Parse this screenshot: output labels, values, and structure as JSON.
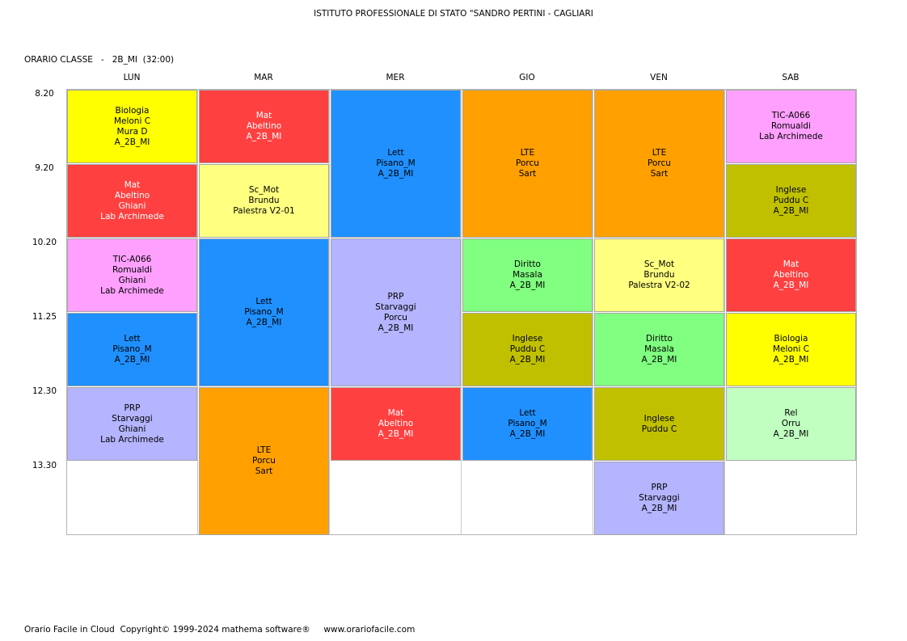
{
  "header": {
    "school": "ISTITUTO PROFESSIONALE DI STATO \"SANDRO PERTINI - CAGLIARI",
    "class_label": "ORARIO CLASSE   -   2B_MI  (32:00)"
  },
  "days": [
    "LUN",
    "MAR",
    "MER",
    "GIO",
    "VEN",
    "SAB"
  ],
  "times": [
    "8.20",
    "9.20",
    "10.20",
    "11.25",
    "12.30",
    "13.30"
  ],
  "colors": {
    "yellow": "#ffff00",
    "red": "#ff4040",
    "blue": "#2090ff",
    "orange": "#ffa000",
    "pink": "#ffa0ff",
    "light_yellow": "#ffff80",
    "lavender": "#b4b4ff",
    "green": "#80ff80",
    "olive": "#c0c000",
    "mint": "#c0ffc0"
  },
  "lessons": [
    {
      "day": 0,
      "start": 0,
      "span": 1,
      "color": "#ffff00",
      "lines": [
        "Biologia",
        "Meloni C",
        "Mura D",
        "A_2B_MI"
      ],
      "text_color": "#000000"
    },
    {
      "day": 0,
      "start": 1,
      "span": 1,
      "color": "#ff4040",
      "lines": [
        "Mat",
        "Abeltino",
        "Ghiani",
        "Lab Archimede"
      ],
      "text_color": "#ffffff"
    },
    {
      "day": 0,
      "start": 2,
      "span": 1,
      "color": "#ffa0ff",
      "lines": [
        "TIC-A066",
        "Romualdi",
        "Ghiani",
        "Lab Archimede"
      ],
      "text_color": "#000000"
    },
    {
      "day": 0,
      "start": 3,
      "span": 1,
      "color": "#2090ff",
      "lines": [
        "Lett",
        "Pisano_M",
        "A_2B_MI"
      ],
      "text_color": "#000000"
    },
    {
      "day": 0,
      "start": 4,
      "span": 1,
      "color": "#b4b4ff",
      "lines": [
        "PRP",
        "Starvaggi",
        "Ghiani",
        "Lab Archimede"
      ],
      "text_color": "#000000"
    },
    {
      "day": 1,
      "start": 0,
      "span": 1,
      "color": "#ff4040",
      "lines": [
        "Mat",
        "Abeltino",
        "A_2B_MI"
      ],
      "text_color": "#ffffff"
    },
    {
      "day": 1,
      "start": 1,
      "span": 1,
      "color": "#ffff80",
      "lines": [
        "Sc_Mot",
        "Brundu",
        "Palestra V2-01"
      ],
      "text_color": "#000000"
    },
    {
      "day": 1,
      "start": 2,
      "span": 2,
      "color": "#2090ff",
      "lines": [
        "Lett",
        "Pisano_M",
        "A_2B_MI"
      ],
      "text_color": "#000000"
    },
    {
      "day": 1,
      "start": 4,
      "span": 2,
      "color": "#ffa000",
      "lines": [
        "LTE",
        "Porcu",
        "Sart"
      ],
      "text_color": "#000000"
    },
    {
      "day": 2,
      "start": 0,
      "span": 2,
      "color": "#2090ff",
      "lines": [
        "Lett",
        "Pisano_M",
        "A_2B_MI"
      ],
      "text_color": "#000000"
    },
    {
      "day": 2,
      "start": 2,
      "span": 2,
      "color": "#b4b4ff",
      "lines": [
        "PRP",
        "Starvaggi",
        "Porcu",
        "A_2B_MI"
      ],
      "text_color": "#000000"
    },
    {
      "day": 2,
      "start": 4,
      "span": 1,
      "color": "#ff4040",
      "lines": [
        "Mat",
        "Abeltino",
        "A_2B_MI"
      ],
      "text_color": "#ffffff"
    },
    {
      "day": 3,
      "start": 0,
      "span": 2,
      "color": "#ffa000",
      "lines": [
        "LTE",
        "Porcu",
        "Sart"
      ],
      "text_color": "#000000"
    },
    {
      "day": 3,
      "start": 2,
      "span": 1,
      "color": "#80ff80",
      "lines": [
        "Diritto",
        "Masala",
        "A_2B_MI"
      ],
      "text_color": "#000000"
    },
    {
      "day": 3,
      "start": 3,
      "span": 1,
      "color": "#c0c000",
      "lines": [
        "Inglese",
        "Puddu C",
        "A_2B_MI"
      ],
      "text_color": "#000000"
    },
    {
      "day": 3,
      "start": 4,
      "span": 1,
      "color": "#2090ff",
      "lines": [
        "Lett",
        "Pisano_M",
        "A_2B_MI"
      ],
      "text_color": "#000000"
    },
    {
      "day": 4,
      "start": 0,
      "span": 2,
      "color": "#ffa000",
      "lines": [
        "LTE",
        "Porcu",
        "Sart"
      ],
      "text_color": "#000000"
    },
    {
      "day": 4,
      "start": 2,
      "span": 1,
      "color": "#ffff80",
      "lines": [
        "Sc_Mot",
        "Brundu",
        "Palestra V2-02"
      ],
      "text_color": "#000000"
    },
    {
      "day": 4,
      "start": 3,
      "span": 1,
      "color": "#80ff80",
      "lines": [
        "Diritto",
        "Masala",
        "A_2B_MI"
      ],
      "text_color": "#000000"
    },
    {
      "day": 4,
      "start": 4,
      "span": 1,
      "color": "#c0c000",
      "lines": [
        "Inglese",
        "Puddu C"
      ],
      "text_color": "#000000"
    },
    {
      "day": 4,
      "start": 5,
      "span": 1,
      "color": "#b4b4ff",
      "lines": [
        "PRP",
        "Starvaggi",
        "A_2B_MI"
      ],
      "text_color": "#000000"
    },
    {
      "day": 5,
      "start": 0,
      "span": 1,
      "color": "#ffa0ff",
      "lines": [
        "TIC-A066",
        "Romualdi",
        "Lab Archimede"
      ],
      "text_color": "#000000"
    },
    {
      "day": 5,
      "start": 1,
      "span": 1,
      "color": "#c0c000",
      "lines": [
        "Inglese",
        "Puddu C",
        "A_2B_MI"
      ],
      "text_color": "#000000"
    },
    {
      "day": 5,
      "start": 2,
      "span": 1,
      "color": "#ff4040",
      "lines": [
        "Mat",
        "Abeltino",
        "A_2B_MI"
      ],
      "text_color": "#ffffff"
    },
    {
      "day": 5,
      "start": 3,
      "span": 1,
      "color": "#ffff00",
      "lines": [
        "Biologia",
        "Meloni C",
        "A_2B_MI"
      ],
      "text_color": "#000000"
    },
    {
      "day": 5,
      "start": 4,
      "span": 1,
      "color": "#c0ffc0",
      "lines": [
        "Rel",
        "Orru",
        "A_2B_MI"
      ],
      "text_color": "#000000"
    }
  ],
  "footer": {
    "text": "Orario Facile in Cloud  Copyright© 1999-2024 mathema software®     www.orariofacile.com"
  }
}
